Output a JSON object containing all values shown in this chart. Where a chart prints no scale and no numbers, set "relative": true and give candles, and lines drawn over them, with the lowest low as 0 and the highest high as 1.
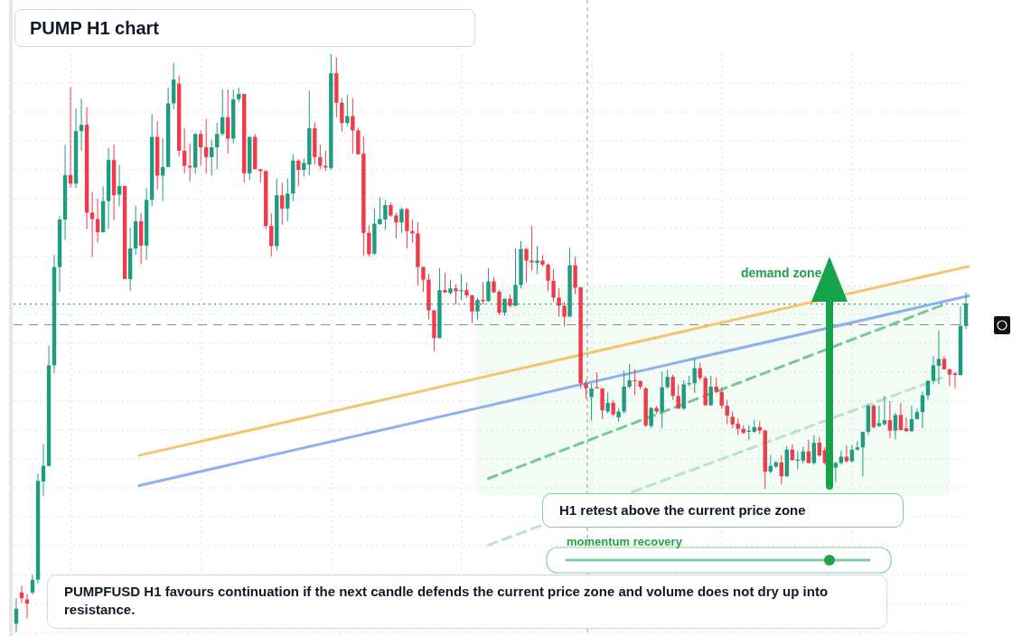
{
  "chart_data": {
    "type": "candlestick",
    "title": "PUMP H1 chart",
    "annotations": [
      "H1 retest above the current price zone",
      "demand zone",
      "momentum recovery",
      "PUMPFUSD H1 favours continuation if the next candle defends the current price zone and volume does not dry up into resistance."
    ],
    "relative": true,
    "grid": true,
    "categories": [
      null,
      null,
      null,
      null,
      null,
      null,
      null,
      null,
      null,
      null,
      null,
      null,
      null,
      null,
      null,
      null,
      null,
      null,
      null,
      null,
      null,
      null,
      null,
      null,
      null,
      null,
      null,
      null,
      null,
      null,
      null,
      null,
      null,
      null,
      null,
      null,
      null,
      null,
      null,
      null,
      null,
      null,
      null,
      null,
      null,
      null,
      null,
      null,
      null,
      null,
      null,
      null,
      null,
      null,
      null,
      null,
      null,
      null,
      null,
      null,
      null,
      null,
      null,
      null,
      null,
      null,
      null,
      null,
      null,
      null,
      null,
      null,
      null,
      null,
      null,
      null,
      null,
      null,
      null,
      null,
      null,
      null,
      null,
      null,
      null,
      null,
      null,
      null,
      null,
      null,
      null,
      null,
      null,
      null,
      null,
      null,
      null,
      null,
      null,
      null,
      null,
      null,
      null,
      null,
      null,
      null,
      null,
      null,
      null,
      null,
      null,
      null,
      null,
      null,
      null,
      null,
      null,
      null,
      null,
      null,
      null,
      null,
      null,
      null,
      null,
      null,
      null,
      null,
      null,
      null,
      null,
      null,
      null,
      null,
      null,
      null,
      null,
      null,
      null,
      null,
      null,
      null,
      null,
      null,
      null,
      null,
      null,
      null,
      null,
      null,
      null,
      null,
      null,
      null,
      null,
      null,
      null,
      null,
      null,
      null,
      null,
      null,
      null,
      null,
      null,
      null,
      null,
      null,
      null,
      null,
      null,
      null,
      null,
      null,
      null,
      null
    ],
    "ohlc": [
      [
        0.015,
        0.059,
        0,
        0.041
      ],
      [
        0.069,
        0.081,
        0.051,
        0.059
      ],
      [
        0.057,
        0.066,
        0.024,
        0.05
      ],
      [
        0.069,
        0.1,
        0.065,
        0.091
      ],
      [
        0.091,
        0.275,
        0.085,
        0.262
      ],
      [
        0.261,
        0.326,
        0.236,
        0.288
      ],
      [
        0.288,
        0.496,
        0.287,
        0.462
      ],
      [
        0.462,
        0.653,
        0.448,
        0.632
      ],
      [
        0.632,
        0.72,
        0.589,
        0.714
      ],
      [
        0.714,
        0.843,
        0.679,
        0.791
      ],
      [
        0.791,
        0.943,
        0.769,
        0.776
      ],
      [
        0.776,
        0.906,
        0.769,
        0.867
      ],
      [
        0.867,
        0.923,
        0.833,
        0.878
      ],
      [
        0.878,
        0.908,
        0.698,
        0.726
      ],
      [
        0.726,
        0.762,
        0.649,
        0.715
      ],
      [
        0.715,
        0.75,
        0.674,
        0.692
      ],
      [
        0.692,
        0.772,
        0.692,
        0.746
      ],
      [
        0.746,
        0.838,
        0.698,
        0.817
      ],
      [
        0.817,
        0.844,
        0.713,
        0.756
      ],
      [
        0.757,
        0.809,
        0.737,
        0.772
      ],
      [
        0.772,
        0.772,
        0.611,
        0.611
      ],
      [
        0.611,
        0.7,
        0.59,
        0.664
      ],
      [
        0.664,
        0.738,
        0.653,
        0.711
      ],
      [
        0.711,
        0.726,
        0.637,
        0.669
      ],
      [
        0.669,
        0.768,
        0.644,
        0.748
      ],
      [
        0.748,
        0.897,
        0.737,
        0.857
      ],
      [
        0.857,
        0.884,
        0.766,
        0.79
      ],
      [
        0.79,
        0.855,
        0.746,
        0.805
      ],
      [
        0.805,
        0.942,
        0.805,
        0.915
      ],
      [
        0.915,
        0.985,
        0.905,
        0.956
      ],
      [
        0.949,
        0.963,
        0.823,
        0.833
      ],
      [
        0.833,
        0.872,
        0.794,
        0.807
      ],
      [
        0.807,
        0.846,
        0.78,
        0.804
      ],
      [
        0.804,
        0.863,
        0.793,
        0.862
      ],
      [
        0.862,
        0.868,
        0.807,
        0.839
      ],
      [
        0.839,
        0.888,
        0.794,
        0.822
      ],
      [
        0.822,
        0.852,
        0.79,
        0.839
      ],
      [
        0.839,
        0.881,
        0.801,
        0.862
      ],
      [
        0.862,
        0.939,
        0.859,
        0.891
      ],
      [
        0.891,
        0.939,
        0.828,
        0.854
      ],
      [
        0.854,
        0.939,
        0.846,
        0.922
      ],
      [
        0.922,
        0.942,
        0.917,
        0.931
      ],
      [
        0.931,
        0.931,
        0.778,
        0.794
      ],
      [
        0.794,
        0.857,
        0.782,
        0.857
      ],
      [
        0.857,
        0.862,
        0.801,
        0.801
      ],
      [
        0.801,
        0.802,
        0.778,
        0.798
      ],
      [
        0.798,
        0.799,
        0.698,
        0.703
      ],
      [
        0.703,
        0.725,
        0.65,
        0.668
      ],
      [
        0.668,
        0.785,
        0.66,
        0.756
      ],
      [
        0.756,
        0.778,
        0.705,
        0.733
      ],
      [
        0.733,
        0.785,
        0.711,
        0.759
      ],
      [
        0.759,
        0.827,
        0.746,
        0.816
      ],
      [
        0.816,
        0.818,
        0.772,
        0.8
      ],
      [
        0.8,
        0.82,
        0.788,
        0.812
      ],
      [
        0.809,
        0.937,
        0.791,
        0.872
      ],
      [
        0.872,
        0.882,
        0.809,
        0.822
      ],
      [
        0.822,
        0.844,
        0.801,
        0.807
      ],
      [
        0.807,
        0.833,
        0.798,
        0.804
      ],
      [
        0.803,
        1,
        0.8,
        0.967
      ],
      [
        0.967,
        0.995,
        0.891,
        0.916
      ],
      [
        0.916,
        0.924,
        0.866,
        0.881
      ],
      [
        0.881,
        0.93,
        0.876,
        0.893
      ],
      [
        0.893,
        0.924,
        0.828,
        0.868
      ],
      [
        0.868,
        0.873,
        0.827,
        0.827
      ],
      [
        0.828,
        0.858,
        0.651,
        0.691
      ],
      [
        0.691,
        0.704,
        0.65,
        0.654
      ],
      [
        0.655,
        0.733,
        0.653,
        0.707
      ],
      [
        0.706,
        0.753,
        0.705,
        0.715
      ],
      [
        0.714,
        0.748,
        0.696,
        0.739
      ],
      [
        0.739,
        0.744,
        0.719,
        0.721
      ],
      [
        0.721,
        0.726,
        0.681,
        0.709
      ],
      [
        0.709,
        0.735,
        0.691,
        0.732
      ],
      [
        0.732,
        0.734,
        0.664,
        0.694
      ],
      [
        0.694,
        0.714,
        0.674,
        0.69
      ],
      [
        0.69,
        0.71,
        0.6,
        0.632
      ],
      [
        0.632,
        0.632,
        0.589,
        0.61
      ],
      [
        0.61,
        0.62,
        0.541,
        0.557
      ],
      [
        0.557,
        0.557,
        0.486,
        0.509
      ],
      [
        0.509,
        0.63,
        0.509,
        0.592
      ],
      [
        0.592,
        0.622,
        0.587,
        0.588
      ],
      [
        0.587,
        0.61,
        0.584,
        0.595
      ],
      [
        0.595,
        0.602,
        0.567,
        0.59
      ],
      [
        0.59,
        0.62,
        0.574,
        0.592
      ],
      [
        0.592,
        0.605,
        0.579,
        0.583
      ],
      [
        0.583,
        0.584,
        0.535,
        0.555
      ],
      [
        0.555,
        0.579,
        0.541,
        0.575
      ],
      [
        0.575,
        0.605,
        0.567,
        0.573
      ],
      [
        0.573,
        0.63,
        0.572,
        0.607
      ],
      [
        0.607,
        0.615,
        0.587,
        0.588
      ],
      [
        0.589,
        0.592,
        0.549,
        0.553
      ],
      [
        0.553,
        0.577,
        0.548,
        0.577
      ],
      [
        0.577,
        0.585,
        0.562,
        0.565
      ],
      [
        0.565,
        0.664,
        0.564,
        0.601
      ],
      [
        0.601,
        0.677,
        0.595,
        0.663
      ],
      [
        0.663,
        0.665,
        0.605,
        0.643
      ],
      [
        0.643,
        0.703,
        0.626,
        0.64
      ],
      [
        0.639,
        0.668,
        0.62,
        0.643
      ],
      [
        0.643,
        0.653,
        0.633,
        0.636
      ],
      [
        0.636,
        0.638,
        0.59,
        0.608
      ],
      [
        0.608,
        0.628,
        0.572,
        0.579
      ],
      [
        0.579,
        0.595,
        0.546,
        0.565
      ],
      [
        0.565,
        0.572,
        0.529,
        0.546
      ],
      [
        0.546,
        0.665,
        0.546,
        0.635
      ],
      [
        0.635,
        0.65,
        0.585,
        0.596
      ],
      [
        0.597,
        0.597,
        0.422,
        0.431
      ],
      [
        0.431,
        0.437,
        0.404,
        0.422
      ],
      [
        0.407,
        0.43,
        0.366,
        0.422
      ],
      [
        0.424,
        0.45,
        0.422,
        0.422
      ],
      [
        0.422,
        0.422,
        0.369,
        0.384
      ],
      [
        0.382,
        0.415,
        0.379,
        0.397
      ],
      [
        0.397,
        0.402,
        0.374,
        0.377
      ],
      [
        0.372,
        0.387,
        0.364,
        0.382
      ],
      [
        0.382,
        0.453,
        0.379,
        0.425
      ],
      [
        0.425,
        0.464,
        0.422,
        0.436
      ],
      [
        0.436,
        0.455,
        0.41,
        0.435
      ],
      [
        0.435,
        0.435,
        0.42,
        0.425
      ],
      [
        0.422,
        0.424,
        0.355,
        0.358
      ],
      [
        0.357,
        0.39,
        0.353,
        0.388
      ],
      [
        0.388,
        0.392,
        0.378,
        0.382
      ],
      [
        0.382,
        0.451,
        0.353,
        0.424
      ],
      [
        0.424,
        0.454,
        0.422,
        0.442
      ],
      [
        0.442,
        0.446,
        0.402,
        0.409
      ],
      [
        0.409,
        0.429,
        0.387,
        0.387
      ],
      [
        0.387,
        0.436,
        0.385,
        0.429
      ],
      [
        0.429,
        0.444,
        0.426,
        0.431
      ],
      [
        0.431,
        0.473,
        0.414,
        0.457
      ],
      [
        0.457,
        0.466,
        0.436,
        0.44
      ],
      [
        0.44,
        0.444,
        0.392,
        0.393
      ],
      [
        0.393,
        0.444,
        0.392,
        0.425
      ],
      [
        0.425,
        0.441,
        0.414,
        0.416
      ],
      [
        0.416,
        0.424,
        0.387,
        0.392
      ],
      [
        0.392,
        0.402,
        0.36,
        0.375
      ],
      [
        0.373,
        0.382,
        0.353,
        0.36
      ],
      [
        0.361,
        0.37,
        0.341,
        0.352
      ],
      [
        0.352,
        0.358,
        0.343,
        0.345
      ],
      [
        0.347,
        0.358,
        0.333,
        0.349
      ],
      [
        0.347,
        0.368,
        0.345,
        0.355
      ],
      [
        0.355,
        0.365,
        0.343,
        0.349
      ],
      [
        0.349,
        0.35,
        0.248,
        0.278
      ],
      [
        0.278,
        0.307,
        0.275,
        0.288
      ],
      [
        0.287,
        0.297,
        0.284,
        0.294
      ],
      [
        0.294,
        0.306,
        0.256,
        0.27
      ],
      [
        0.27,
        0.322,
        0.269,
        0.316
      ],
      [
        0.316,
        0.325,
        0.297,
        0.298
      ],
      [
        0.297,
        0.314,
        0.282,
        0.299
      ],
      [
        0.297,
        0.321,
        0.292,
        0.313
      ],
      [
        0.313,
        0.333,
        0.292,
        0.293
      ],
      [
        0.293,
        0.341,
        0.29,
        0.328
      ],
      [
        0.328,
        0.338,
        0.304,
        0.306
      ],
      [
        0.315,
        0.32,
        0.29,
        0.293
      ],
      null,
      [
        0.285,
        0.295,
        0.26,
        0.293
      ],
      [
        0.293,
        0.314,
        0.29,
        0.304
      ],
      [
        0.304,
        0.324,
        0.294,
        0.296
      ],
      [
        0.296,
        0.324,
        0.294,
        0.316
      ],
      [
        0.316,
        0.331,
        0.315,
        0.32
      ],
      [
        0.32,
        0.347,
        0.27,
        0.347
      ],
      [
        0.347,
        0.395,
        0.341,
        0.392
      ],
      [
        0.392,
        0.395,
        0.353,
        0.355
      ],
      [
        0.357,
        0.392,
        0.355,
        0.362
      ],
      [
        0.36,
        0.409,
        0.358,
        0.367
      ],
      [
        0.367,
        0.4,
        0.336,
        0.349
      ],
      [
        0.349,
        0.38,
        0.334,
        0.376
      ],
      [
        0.376,
        0.397,
        0.349,
        0.35
      ],
      [
        0.353,
        0.372,
        0.347,
        0.348
      ],
      [
        0.348,
        0.392,
        0.347,
        0.369
      ],
      [
        0.369,
        0.387,
        0.368,
        0.381
      ],
      [
        0.381,
        0.417,
        0.353,
        0.41
      ],
      [
        0.41,
        0.436,
        0.402,
        0.435
      ],
      [
        0.435,
        0.478,
        0.429,
        0.462
      ],
      [
        0.461,
        0.522,
        0.429,
        0.473
      ],
      [
        0.473,
        0.478,
        0.455,
        0.455
      ],
      [
        0.455,
        0.456,
        0.426,
        0.446
      ],
      [
        0.448,
        0.451,
        0.422,
        0.445
      ],
      [
        0.445,
        0.564,
        0.444,
        0.53
      ],
      [
        0.53,
        0.588,
        0.525,
        0.569
      ]
    ],
    "series": [
      {
        "type": "line",
        "color": "#f5c56e",
        "line_style": "solid",
        "values": [
          null,
          null,
          null,
          null,
          null,
          null,
          null,
          null,
          null,
          null,
          null,
          null,
          null,
          null,
          null,
          null,
          null,
          null,
          null,
          null,
          null,
          null,
          null,
          0.306,
          null,
          null,
          null,
          null,
          null,
          null,
          null,
          null,
          null,
          null,
          null,
          null,
          null,
          null,
          null,
          null,
          null,
          null,
          null,
          null,
          null,
          null,
          null,
          null,
          null,
          null,
          null,
          null,
          null,
          null,
          null,
          null,
          null,
          null,
          null,
          null,
          null,
          null,
          null,
          null,
          null,
          null,
          null,
          null,
          null,
          null,
          null,
          null,
          null,
          null,
          null,
          null,
          null,
          null,
          null,
          null,
          null,
          null,
          null,
          null,
          null,
          null,
          null,
          null,
          null,
          null,
          null,
          null,
          null,
          null,
          null,
          null,
          null,
          null,
          null,
          null,
          null,
          null,
          null,
          null,
          null,
          null,
          null,
          null,
          null,
          null,
          null,
          null,
          null,
          null,
          null,
          null,
          null,
          null,
          null,
          null,
          null,
          null,
          null,
          null,
          null,
          null,
          null,
          null,
          null,
          null,
          null,
          null,
          null,
          null,
          null,
          null,
          null,
          null,
          null,
          null,
          null,
          null,
          null,
          null,
          null,
          null,
          null,
          null,
          null,
          null,
          null,
          null,
          null,
          null,
          null,
          null,
          null,
          null,
          null,
          null,
          null,
          null,
          null,
          null,
          null,
          null,
          null,
          null,
          null,
          null,
          null,
          null,
          null,
          null,
          null,
          0.633
        ]
      },
      {
        "type": "line",
        "color": "#8fb0ef",
        "line_style": "solid",
        "values": [
          null,
          null,
          null,
          null,
          null,
          null,
          null,
          null,
          null,
          null,
          null,
          null,
          null,
          null,
          null,
          null,
          null,
          null,
          null,
          null,
          null,
          null,
          null,
          0.254,
          null,
          null,
          null,
          null,
          null,
          null,
          null,
          null,
          null,
          null,
          null,
          null,
          null,
          null,
          null,
          null,
          null,
          null,
          null,
          null,
          null,
          null,
          null,
          null,
          null,
          null,
          null,
          null,
          null,
          null,
          null,
          null,
          null,
          null,
          null,
          null,
          null,
          null,
          null,
          null,
          null,
          null,
          null,
          null,
          null,
          null,
          null,
          null,
          null,
          null,
          null,
          null,
          null,
          null,
          null,
          null,
          null,
          null,
          null,
          null,
          null,
          null,
          null,
          null,
          null,
          null,
          null,
          null,
          null,
          null,
          null,
          null,
          null,
          null,
          null,
          null,
          null,
          null,
          null,
          null,
          null,
          null,
          null,
          null,
          null,
          null,
          null,
          null,
          null,
          null,
          null,
          null,
          null,
          null,
          null,
          null,
          null,
          null,
          null,
          null,
          null,
          null,
          null,
          null,
          null,
          null,
          null,
          null,
          null,
          null,
          null,
          null,
          null,
          null,
          null,
          null,
          null,
          null,
          null,
          null,
          null,
          null,
          null,
          null,
          null,
          null,
          null,
          null,
          null,
          null,
          null,
          null,
          null,
          null,
          null,
          null,
          null,
          null,
          null,
          null,
          null,
          null,
          null,
          null,
          null,
          null,
          null,
          null,
          null,
          null,
          null,
          0.582
        ]
      },
      {
        "type": "line",
        "color": "#76c994",
        "line_style": "dashed",
        "values": [
          null,
          null,
          null,
          null,
          null,
          null,
          null,
          null,
          null,
          null,
          null,
          null,
          null,
          null,
          null,
          null,
          null,
          null,
          null,
          null,
          null,
          null,
          null,
          null,
          null,
          null,
          null,
          null,
          null,
          null,
          null,
          null,
          null,
          null,
          null,
          null,
          null,
          null,
          null,
          null,
          null,
          null,
          null,
          null,
          null,
          null,
          null,
          null,
          null,
          null,
          null,
          null,
          null,
          null,
          null,
          null,
          null,
          null,
          null,
          null,
          null,
          null,
          null,
          null,
          null,
          null,
          null,
          null,
          null,
          null,
          null,
          null,
          null,
          null,
          null,
          null,
          null,
          null,
          null,
          null,
          null,
          null,
          null,
          null,
          null,
          null,
          null,
          0.266,
          null,
          null,
          null,
          null,
          null,
          null,
          null,
          null,
          null,
          null,
          null,
          null,
          null,
          null,
          null,
          null,
          null,
          null,
          null,
          null,
          null,
          null,
          null,
          null,
          null,
          null,
          null,
          null,
          null,
          null,
          null,
          null,
          null,
          null,
          null,
          null,
          null,
          null,
          null,
          null,
          null,
          null,
          null,
          null,
          null,
          null,
          null,
          null,
          null,
          null,
          null,
          null,
          null,
          null,
          null,
          null,
          null,
          null,
          null,
          null,
          null,
          null,
          null,
          null,
          null,
          null,
          null,
          null,
          null,
          null,
          null,
          null,
          null,
          null,
          null,
          null,
          null,
          null,
          null,
          null,
          null,
          null,
          null,
          0.569,
          null,
          null,
          null,
          null
        ]
      },
      {
        "type": "line",
        "color": "#b9e4c8",
        "line_style": "dashed",
        "values": [
          null,
          null,
          null,
          null,
          null,
          null,
          null,
          null,
          null,
          null,
          null,
          null,
          null,
          null,
          null,
          null,
          null,
          null,
          null,
          null,
          null,
          null,
          null,
          null,
          null,
          null,
          null,
          null,
          null,
          null,
          null,
          null,
          null,
          null,
          null,
          null,
          null,
          null,
          null,
          null,
          null,
          null,
          null,
          null,
          null,
          null,
          null,
          null,
          null,
          null,
          null,
          null,
          null,
          null,
          null,
          null,
          null,
          null,
          null,
          null,
          null,
          null,
          null,
          null,
          null,
          null,
          null,
          null,
          null,
          null,
          null,
          null,
          null,
          null,
          null,
          null,
          null,
          null,
          null,
          null,
          null,
          null,
          null,
          null,
          null,
          null,
          null,
          0.151,
          null,
          null,
          null,
          null,
          null,
          null,
          null,
          null,
          null,
          null,
          null,
          null,
          null,
          null,
          null,
          null,
          null,
          null,
          null,
          null,
          null,
          null,
          null,
          null,
          null,
          null,
          null,
          null,
          null,
          null,
          null,
          null,
          null,
          null,
          null,
          null,
          null,
          null,
          null,
          null,
          null,
          null,
          null,
          null,
          null,
          null,
          null,
          null,
          null,
          null,
          null,
          null,
          null,
          null,
          null,
          null,
          null,
          null,
          null,
          null,
          null,
          null,
          null,
          null,
          null,
          null,
          null,
          null,
          null,
          null,
          null,
          null,
          null,
          null,
          null,
          null,
          null,
          null,
          null,
          null,
          null,
          null,
          0.44,
          null,
          null,
          null,
          null,
          null
        ]
      }
    ],
    "ref_lines": [
      {
        "axis": "y",
        "value": 0.568,
        "color": "#1c8a7a",
        "line_style": "dotted"
      },
      {
        "axis": "y",
        "value": 0.532,
        "color": "#8a8a8a",
        "line_style": "dashed"
      }
    ]
  }
}
